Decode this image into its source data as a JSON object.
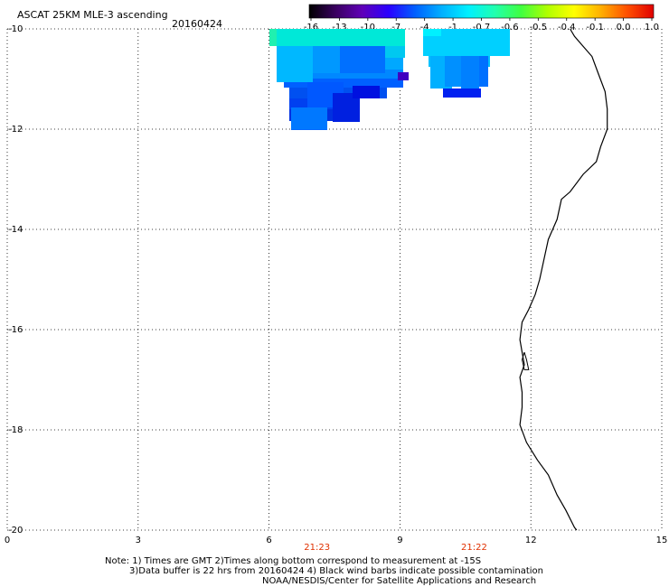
{
  "header": {
    "title": "ASCAT 25KM MLE-3 ascending",
    "date": "20160424"
  },
  "colorbar": {
    "labels": [
      "-16",
      "-13",
      "-10",
      "-7",
      "-4",
      "-1",
      "-0.7",
      "-0.6",
      "-0.5",
      "-0.4",
      "-0.1",
      "0.0",
      "1.0"
    ],
    "gradient": [
      "#000000",
      "#3a0060",
      "#6000b8",
      "#2a00ff",
      "#0060ff",
      "#00b0ff",
      "#00f0ff",
      "#20ffb0",
      "#40ff40",
      "#b0ff00",
      "#ffff00",
      "#ffb000",
      "#ff5000",
      "#e00000"
    ]
  },
  "map": {
    "x_ticks": [
      "0",
      "3",
      "6",
      "9",
      "12",
      "15"
    ],
    "y_ticks": [
      "-10",
      "-12",
      "-14",
      "-16",
      "-18",
      "-20"
    ],
    "pass_times": [
      {
        "label": "21:23",
        "lon": 7.1
      },
      {
        "label": "21:22",
        "lon": 10.7
      }
    ],
    "coastline": [
      [
        12.9,
        -10.0
      ],
      [
        13.0,
        -10.15
      ],
      [
        13.2,
        -10.35
      ],
      [
        13.4,
        -10.55
      ],
      [
        13.55,
        -10.9
      ],
      [
        13.7,
        -11.25
      ],
      [
        13.75,
        -11.6
      ],
      [
        13.75,
        -12.0
      ],
      [
        13.6,
        -12.35
      ],
      [
        13.5,
        -12.65
      ],
      [
        13.2,
        -12.9
      ],
      [
        12.9,
        -13.25
      ],
      [
        12.7,
        -13.4
      ],
      [
        12.6,
        -13.8
      ],
      [
        12.4,
        -14.2
      ],
      [
        12.3,
        -14.6
      ],
      [
        12.2,
        -15.0
      ],
      [
        12.1,
        -15.3
      ],
      [
        11.95,
        -15.6
      ],
      [
        11.8,
        -15.85
      ],
      [
        11.75,
        -16.2
      ],
      [
        11.8,
        -16.45
      ],
      [
        11.85,
        -16.7
      ],
      [
        11.75,
        -16.95
      ],
      [
        11.8,
        -17.25
      ],
      [
        11.8,
        -17.55
      ],
      [
        11.75,
        -17.9
      ],
      [
        11.9,
        -18.25
      ],
      [
        12.15,
        -18.6
      ],
      [
        12.4,
        -18.9
      ],
      [
        12.6,
        -19.3
      ],
      [
        12.8,
        -19.6
      ],
      [
        13.0,
        -19.95
      ],
      [
        13.05,
        -20.0
      ]
    ],
    "coastline_loop": [
      [
        11.85,
        -16.45
      ],
      [
        11.9,
        -16.6
      ],
      [
        11.95,
        -16.8
      ],
      [
        11.85,
        -16.8
      ],
      [
        11.8,
        -16.6
      ],
      [
        11.85,
        -16.45
      ]
    ]
  },
  "notes": {
    "line1": "Note: 1) Times are GMT 2)Times along bottom correspond to measurement at -15S",
    "line2": "3)Data buffer is 22 hrs from 20160424 4) Black wind barbs indicate possible contamination",
    "line3": "NOAA/NESDIS/Center for Satellite Applications and Research"
  }
}
